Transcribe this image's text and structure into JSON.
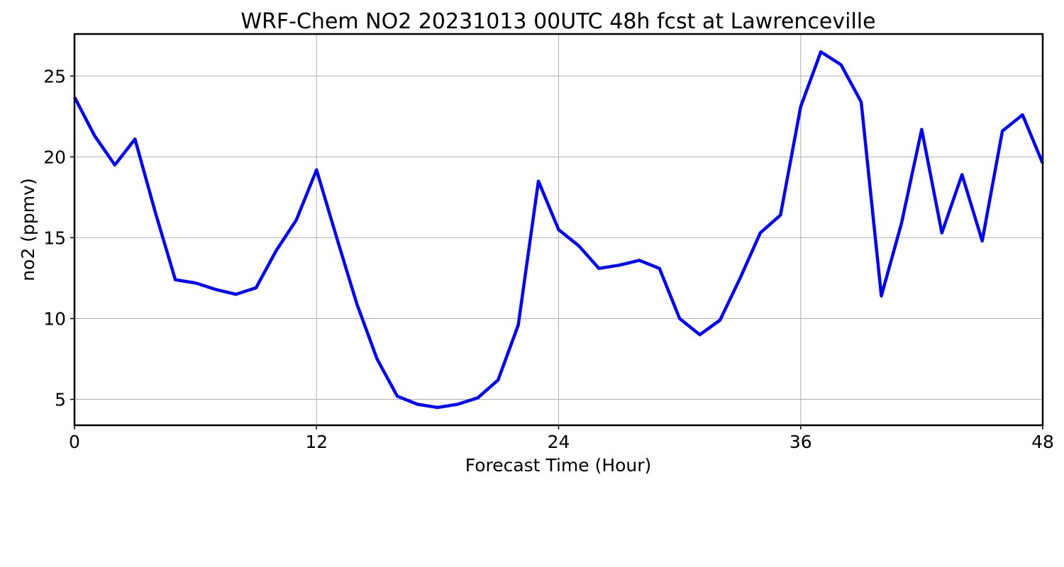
{
  "chart_data": {
    "type": "line",
    "title": "WRF-Chem NO2  20231013 00UTC 48h fcst at Lawrenceville",
    "xlabel": "Forecast Time (Hour)",
    "ylabel": "no2  (ppmv)",
    "xlim": [
      0,
      48
    ],
    "ylim": [
      3.4,
      27.6
    ],
    "xticks": [
      0,
      12,
      24,
      36,
      48
    ],
    "yticks": [
      5,
      10,
      15,
      20,
      25
    ],
    "grid": true,
    "legend": "none",
    "line_color": "#0000ff",
    "series": [
      {
        "x": [
          0,
          1,
          2,
          3,
          4,
          5,
          6,
          7,
          8,
          9,
          10,
          11,
          12,
          13,
          14,
          15,
          16,
          17,
          18,
          19,
          20,
          21,
          22,
          23,
          24,
          25,
          26,
          27,
          28,
          29,
          30,
          31,
          32,
          33,
          34,
          35,
          36,
          37,
          38,
          39,
          40,
          41,
          42,
          43,
          44,
          45,
          46,
          47,
          48
        ],
        "values": [
          23.7,
          21.3,
          19.5,
          21.1,
          16.6,
          12.4,
          12.2,
          11.8,
          11.5,
          11.9,
          14.2,
          16.1,
          19.2,
          15.0,
          10.9,
          7.5,
          5.2,
          4.7,
          4.5,
          4.7,
          5.1,
          6.2,
          9.6,
          18.5,
          15.5,
          14.5,
          13.1,
          13.3,
          13.6,
          13.1,
          10.0,
          9.0,
          9.9,
          12.5,
          15.3,
          16.4,
          23.1,
          26.5,
          25.7,
          23.4,
          11.4,
          15.9,
          21.7,
          15.3,
          18.9,
          14.8,
          21.6,
          22.6,
          19.6
        ]
      }
    ]
  }
}
